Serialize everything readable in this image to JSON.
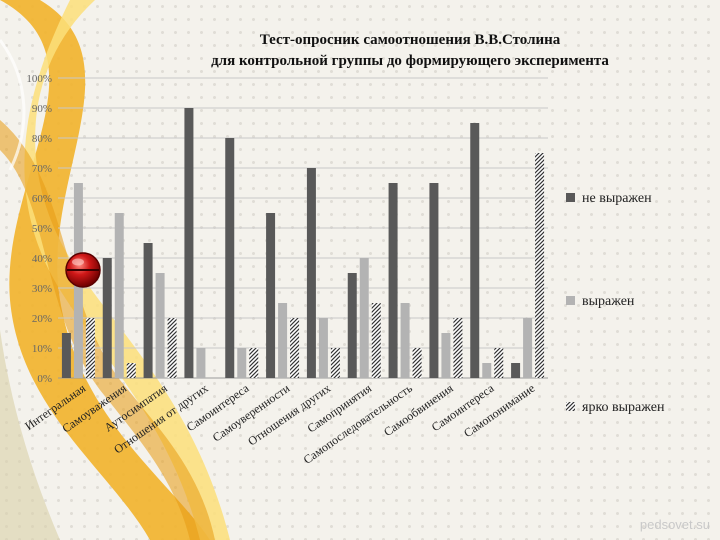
{
  "slide": {
    "title_line1": "Тест-опросник самоотношения В.В.Столина",
    "title_line2": "для контрольной группы до формирующего эксперимента",
    "watermark": "pedsovet.su"
  },
  "chart_data": {
    "type": "bar",
    "title": "Тест-опросник самоотношения В.В.Столина для контрольной группы до формирующего эксперимента",
    "categories": [
      "Интегральная",
      "Самоуважения",
      "Аутосимпатия",
      "Отношения от других",
      "Самоинтереса",
      "Самоуверенности",
      "Отношения других",
      "Самопринятия",
      "Самопоследовательность",
      "Самообвинения",
      "Самоинтереса",
      "Самопонимание"
    ],
    "series": [
      {
        "name": "не выражен",
        "color": "#595959",
        "values": [
          15,
          40,
          45,
          90,
          80,
          55,
          70,
          35,
          65,
          65,
          85,
          5
        ]
      },
      {
        "name": "выражен",
        "color": "#b3b3b3",
        "values": [
          65,
          55,
          35,
          10,
          10,
          25,
          20,
          40,
          25,
          15,
          5,
          20
        ]
      },
      {
        "name": "ярко выражен",
        "color": "#444444",
        "pattern": "hatched",
        "values": [
          20,
          5,
          20,
          0,
          10,
          20,
          10,
          25,
          10,
          20,
          10,
          75
        ]
      }
    ],
    "yticks": [
      "0%",
      "10%",
      "20%",
      "30%",
      "40%",
      "50%",
      "60%",
      "70%",
      "80%",
      "90%",
      "100%"
    ],
    "ylim": [
      0,
      100
    ],
    "grid": true,
    "legend": "right"
  }
}
